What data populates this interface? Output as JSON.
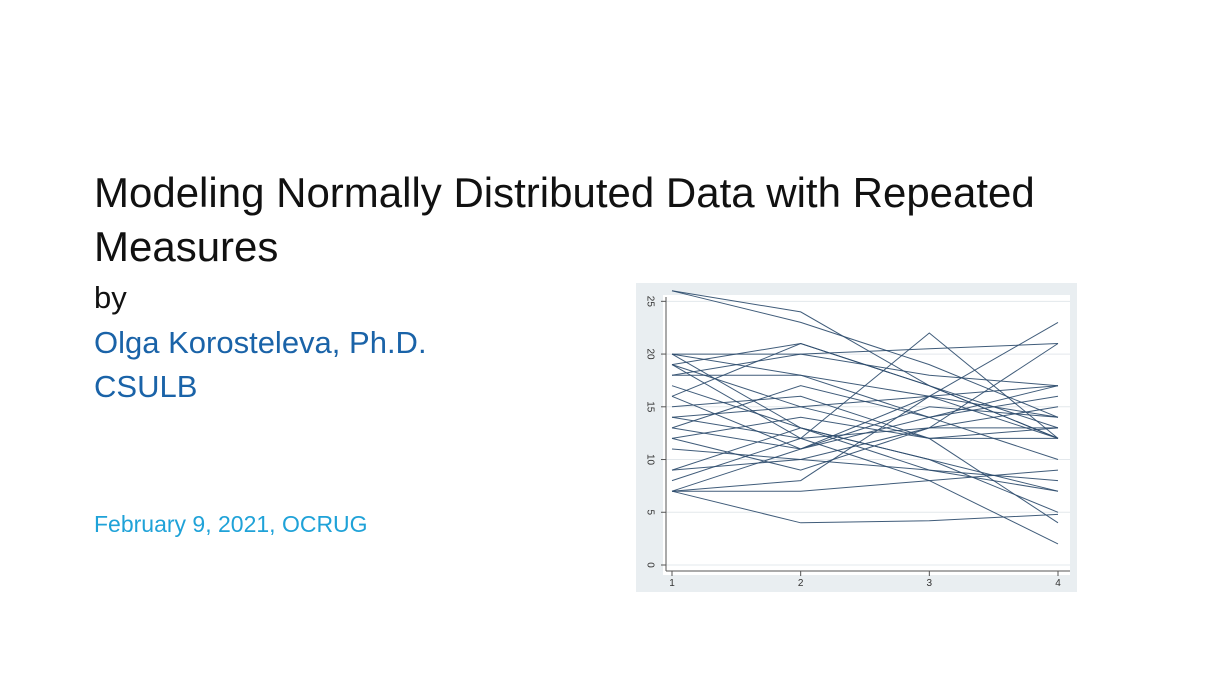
{
  "slide": {
    "title_line1": "Modeling Normally Distributed Data with Repeated",
    "title_line2": "Measures",
    "by": "by",
    "author": "Olga Korosteleva, Ph.D.",
    "affiliation": "CSULB",
    "date": "February 9, 2021, OCRUG",
    "colors": {
      "text": "#111111",
      "author": "#1a63a8",
      "date": "#1fa2d8",
      "lines": "#2b4a6b",
      "chart_bg": "#e9eef1",
      "plot_bg": "#ffffff"
    }
  },
  "chart_data": {
    "type": "line",
    "x": [
      1,
      2,
      3,
      4
    ],
    "xticks": [
      "1",
      "2",
      "3",
      "4"
    ],
    "yticks": [
      "0",
      "5",
      "10",
      "15",
      "20",
      "25"
    ],
    "ylim": [
      0,
      26
    ],
    "xlim": [
      1,
      4
    ],
    "grid": true,
    "legend": "none",
    "series": [
      {
        "values": [
          26,
          24,
          17,
          12
        ]
      },
      {
        "values": [
          26,
          23,
          19,
          14
        ]
      },
      {
        "values": [
          20,
          18,
          16,
          14
        ]
      },
      {
        "values": [
          20,
          20,
          18,
          17
        ]
      },
      {
        "values": [
          19,
          12,
          8,
          2
        ]
      },
      {
        "values": [
          19,
          15,
          12,
          4
        ]
      },
      {
        "values": [
          19,
          21,
          17,
          12
        ]
      },
      {
        "values": [
          18,
          18,
          14,
          10
        ]
      },
      {
        "values": [
          17,
          13,
          10,
          7
        ]
      },
      {
        "values": [
          16,
          21,
          17,
          13
        ]
      },
      {
        "values": [
          16,
          11,
          16,
          17
        ]
      },
      {
        "values": [
          15,
          16,
          12,
          13
        ]
      },
      {
        "values": [
          14,
          12,
          22,
          12
        ]
      },
      {
        "values": [
          13,
          11,
          15,
          14
        ]
      },
      {
        "values": [
          13,
          17,
          14,
          17
        ]
      },
      {
        "values": [
          12,
          14,
          12,
          12
        ]
      },
      {
        "values": [
          12,
          9,
          13,
          13
        ]
      },
      {
        "values": [
          11,
          10,
          9,
          7
        ]
      },
      {
        "values": [
          9,
          10,
          13,
          15
        ]
      },
      {
        "values": [
          9,
          13,
          9,
          8
        ]
      },
      {
        "values": [
          8,
          12,
          13,
          21
        ]
      },
      {
        "values": [
          7,
          4,
          4.2,
          4.8
        ]
      },
      {
        "values": [
          7,
          8,
          16,
          23
        ]
      },
      {
        "values": [
          7,
          11,
          14,
          16
        ]
      },
      {
        "values": [
          7,
          7,
          8,
          9
        ]
      },
      {
        "values": [
          18,
          20,
          20.5,
          21
        ]
      },
      {
        "values": [
          20,
          13,
          10,
          5
        ]
      },
      {
        "values": [
          14,
          15,
          16,
          12
        ]
      }
    ]
  }
}
